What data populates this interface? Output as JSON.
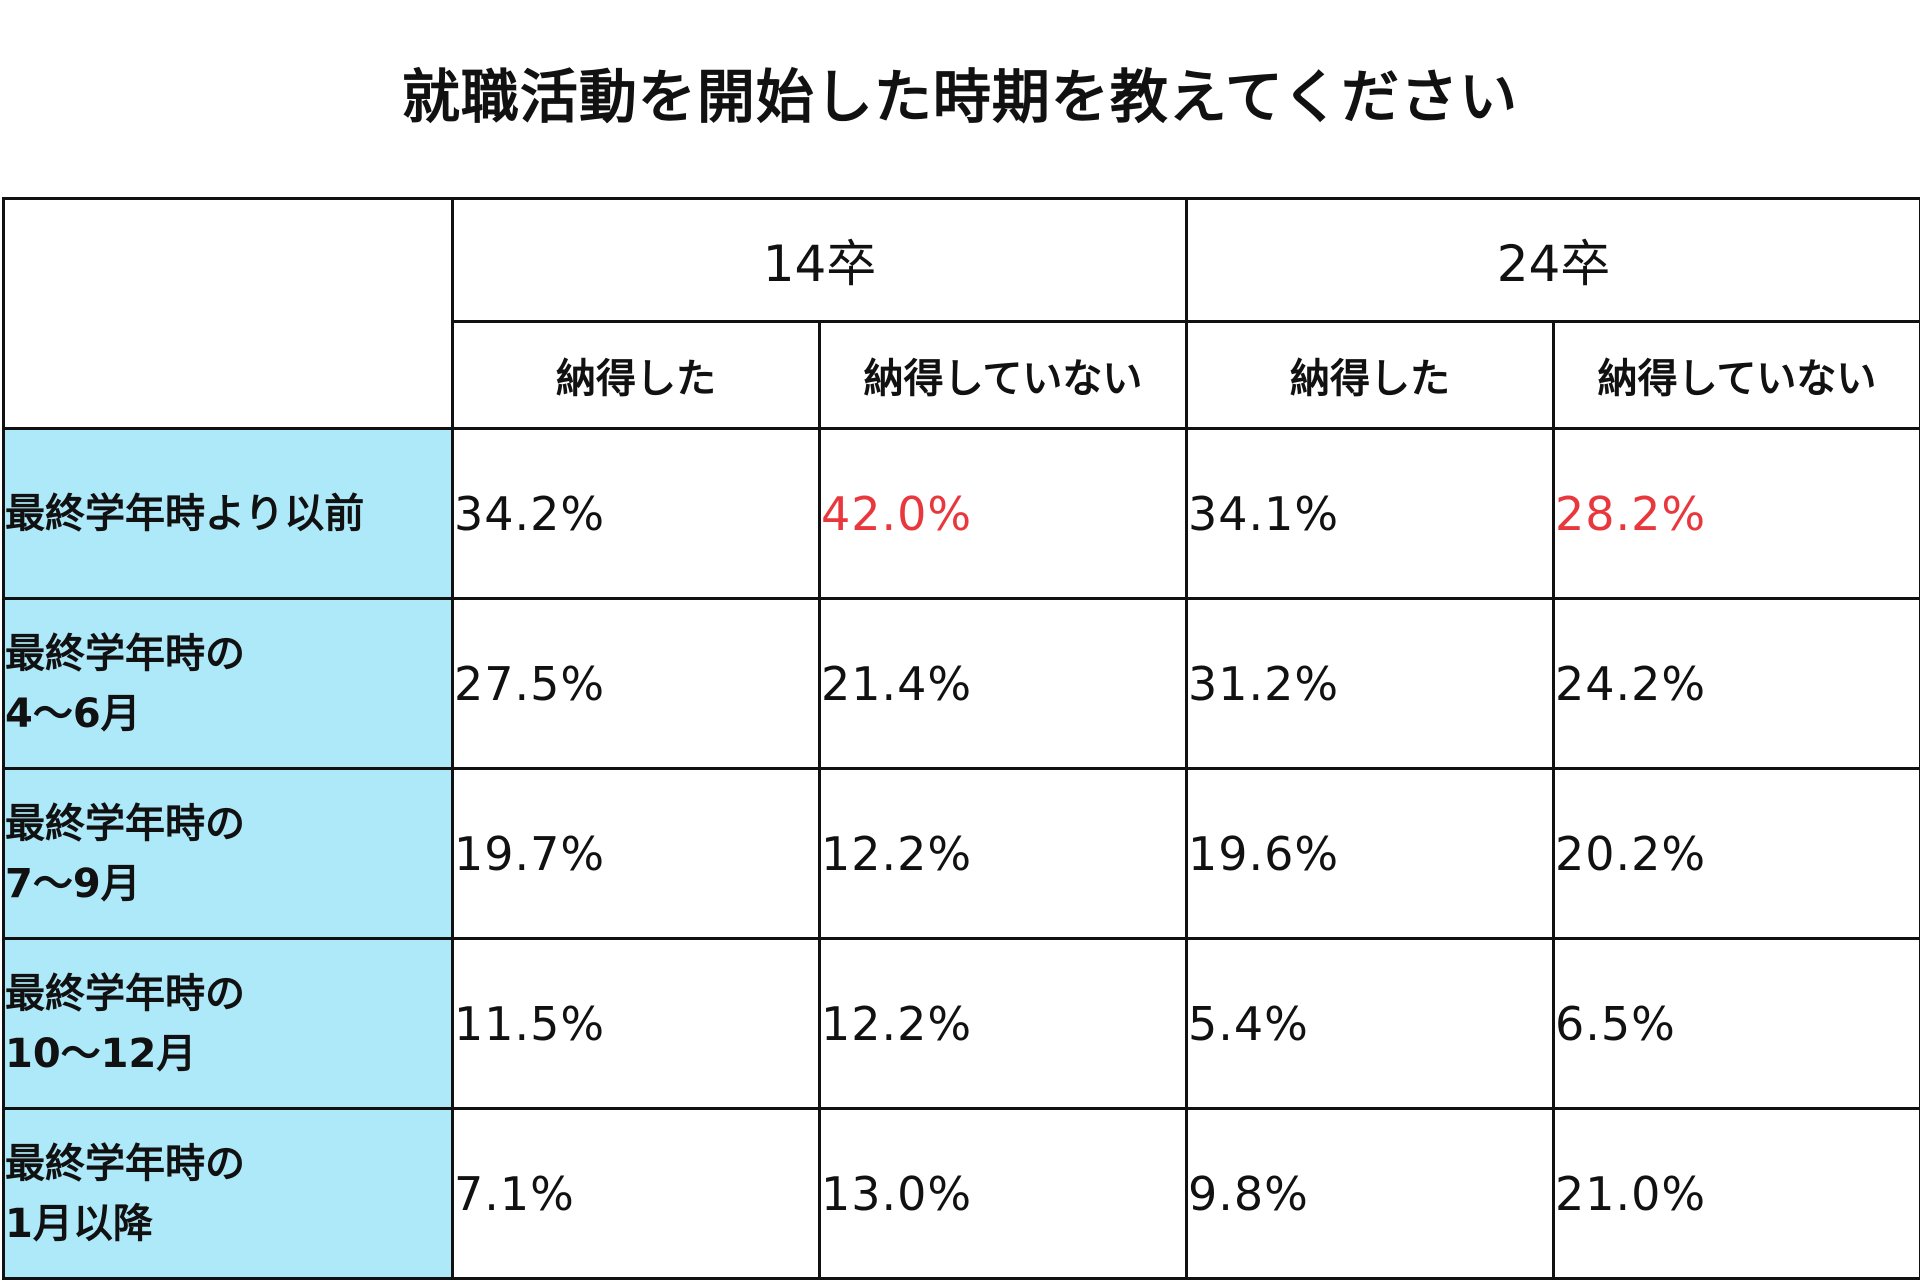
{
  "colors": {
    "highlight_text": "#e8383d",
    "row_label_bg": "#aee9f9",
    "border": "#111111"
  },
  "chart_data": {
    "type": "table",
    "title": "就職活動を開始した時期を教えてください",
    "groups": [
      "14卒",
      "24卒"
    ],
    "sub_columns": [
      "納得した",
      "納得していない",
      "納得した",
      "納得していない"
    ],
    "rows": [
      {
        "label_lines": [
          "最終学年時より以前"
        ],
        "values": [
          "34.2%",
          "42.0%",
          "34.1%",
          "28.2%"
        ],
        "highlight": [
          false,
          true,
          false,
          true
        ]
      },
      {
        "label_lines": [
          "最終学年時の",
          "4〜6月"
        ],
        "values": [
          "27.5%",
          "21.4%",
          "31.2%",
          "24.2%"
        ],
        "highlight": [
          false,
          false,
          false,
          false
        ]
      },
      {
        "label_lines": [
          "最終学年時の",
          "7〜9月"
        ],
        "values": [
          "19.7%",
          "12.2%",
          "19.6%",
          "20.2%"
        ],
        "highlight": [
          false,
          false,
          false,
          false
        ]
      },
      {
        "label_lines": [
          "最終学年時の",
          "10〜12月"
        ],
        "values": [
          "11.5%",
          "12.2%",
          "5.4%",
          "6.5%"
        ],
        "highlight": [
          false,
          false,
          false,
          false
        ]
      },
      {
        "label_lines": [
          "最終学年時の",
          "1月以降"
        ],
        "values": [
          "7.1%",
          "13.0%",
          "9.8%",
          "21.0%"
        ],
        "highlight": [
          false,
          false,
          false,
          false
        ]
      }
    ]
  }
}
